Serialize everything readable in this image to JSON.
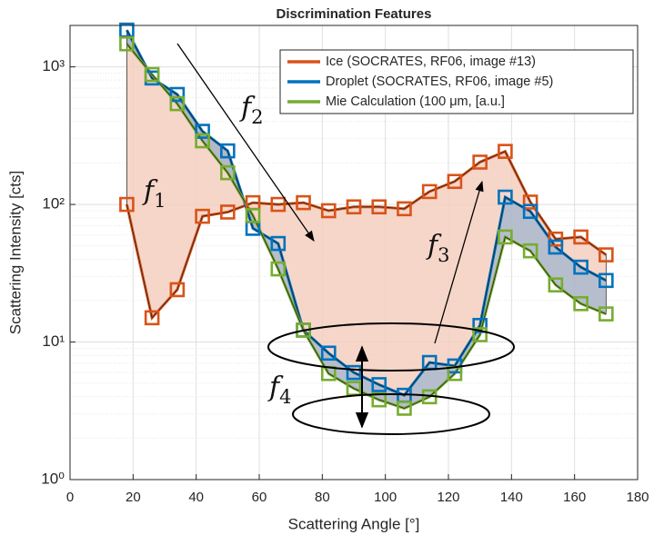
{
  "chart_data": {
    "type": "line",
    "title": "Discrimination Features",
    "xlabel": "Scattering Angle  [°]",
    "ylabel": "Scattering Intensity [cts]",
    "x": [
      18,
      26,
      34,
      42,
      50,
      58,
      66,
      74,
      82,
      90,
      98,
      106,
      114,
      122,
      130,
      138,
      146,
      154,
      162,
      170
    ],
    "series": [
      {
        "name": "Ice (SOCRATES, RF06, image #13)",
        "color": "#d95319",
        "values": [
          100,
          15,
          24,
          82,
          88,
          103,
          100,
          103,
          90,
          96,
          96,
          93,
          124,
          147,
          203,
          243,
          104,
          56,
          58,
          43
        ]
      },
      {
        "name": "Droplet (SOCRATES, RF06, image #5)",
        "color": "#0072bd",
        "values": [
          1850,
          830,
          630,
          340,
          245,
          67,
          52,
          12.2,
          8.3,
          6.0,
          4.9,
          4.1,
          7.1,
          6.7,
          13.2,
          113,
          89,
          49,
          35,
          28
        ]
      },
      {
        "name": "Mie Calculation (100 μm, [a.u.]",
        "color": "#77ac30",
        "values": [
          1470,
          880,
          540,
          290,
          170,
          83,
          34,
          12.2,
          5.9,
          4.6,
          3.8,
          3.3,
          4.0,
          5.9,
          11.3,
          58,
          46,
          26,
          19,
          16
        ]
      }
    ],
    "fills": [
      {
        "color": "#f4cfc0"
      },
      {
        "color": "#a9b3c6"
      }
    ],
    "annotations": [
      {
        "text": "f",
        "subscript": "1"
      },
      {
        "text": "f",
        "subscript": "2"
      },
      {
        "text": "f",
        "subscript": "3"
      },
      {
        "text": "f",
        "subscript": "4"
      }
    ],
    "xlim": [
      0,
      180
    ],
    "xticks": [
      0,
      20,
      40,
      60,
      80,
      100,
      120,
      140,
      160,
      180
    ],
    "ylim": [
      1,
      2000
    ],
    "yscale": "log",
    "yticks": [
      {
        "value": 1,
        "label": "10⁰"
      },
      {
        "value": 10,
        "label": "10¹"
      },
      {
        "value": 100,
        "label": "10²"
      },
      {
        "value": 1000,
        "label": "10³"
      }
    ],
    "grid": true,
    "legend": "northeast"
  }
}
